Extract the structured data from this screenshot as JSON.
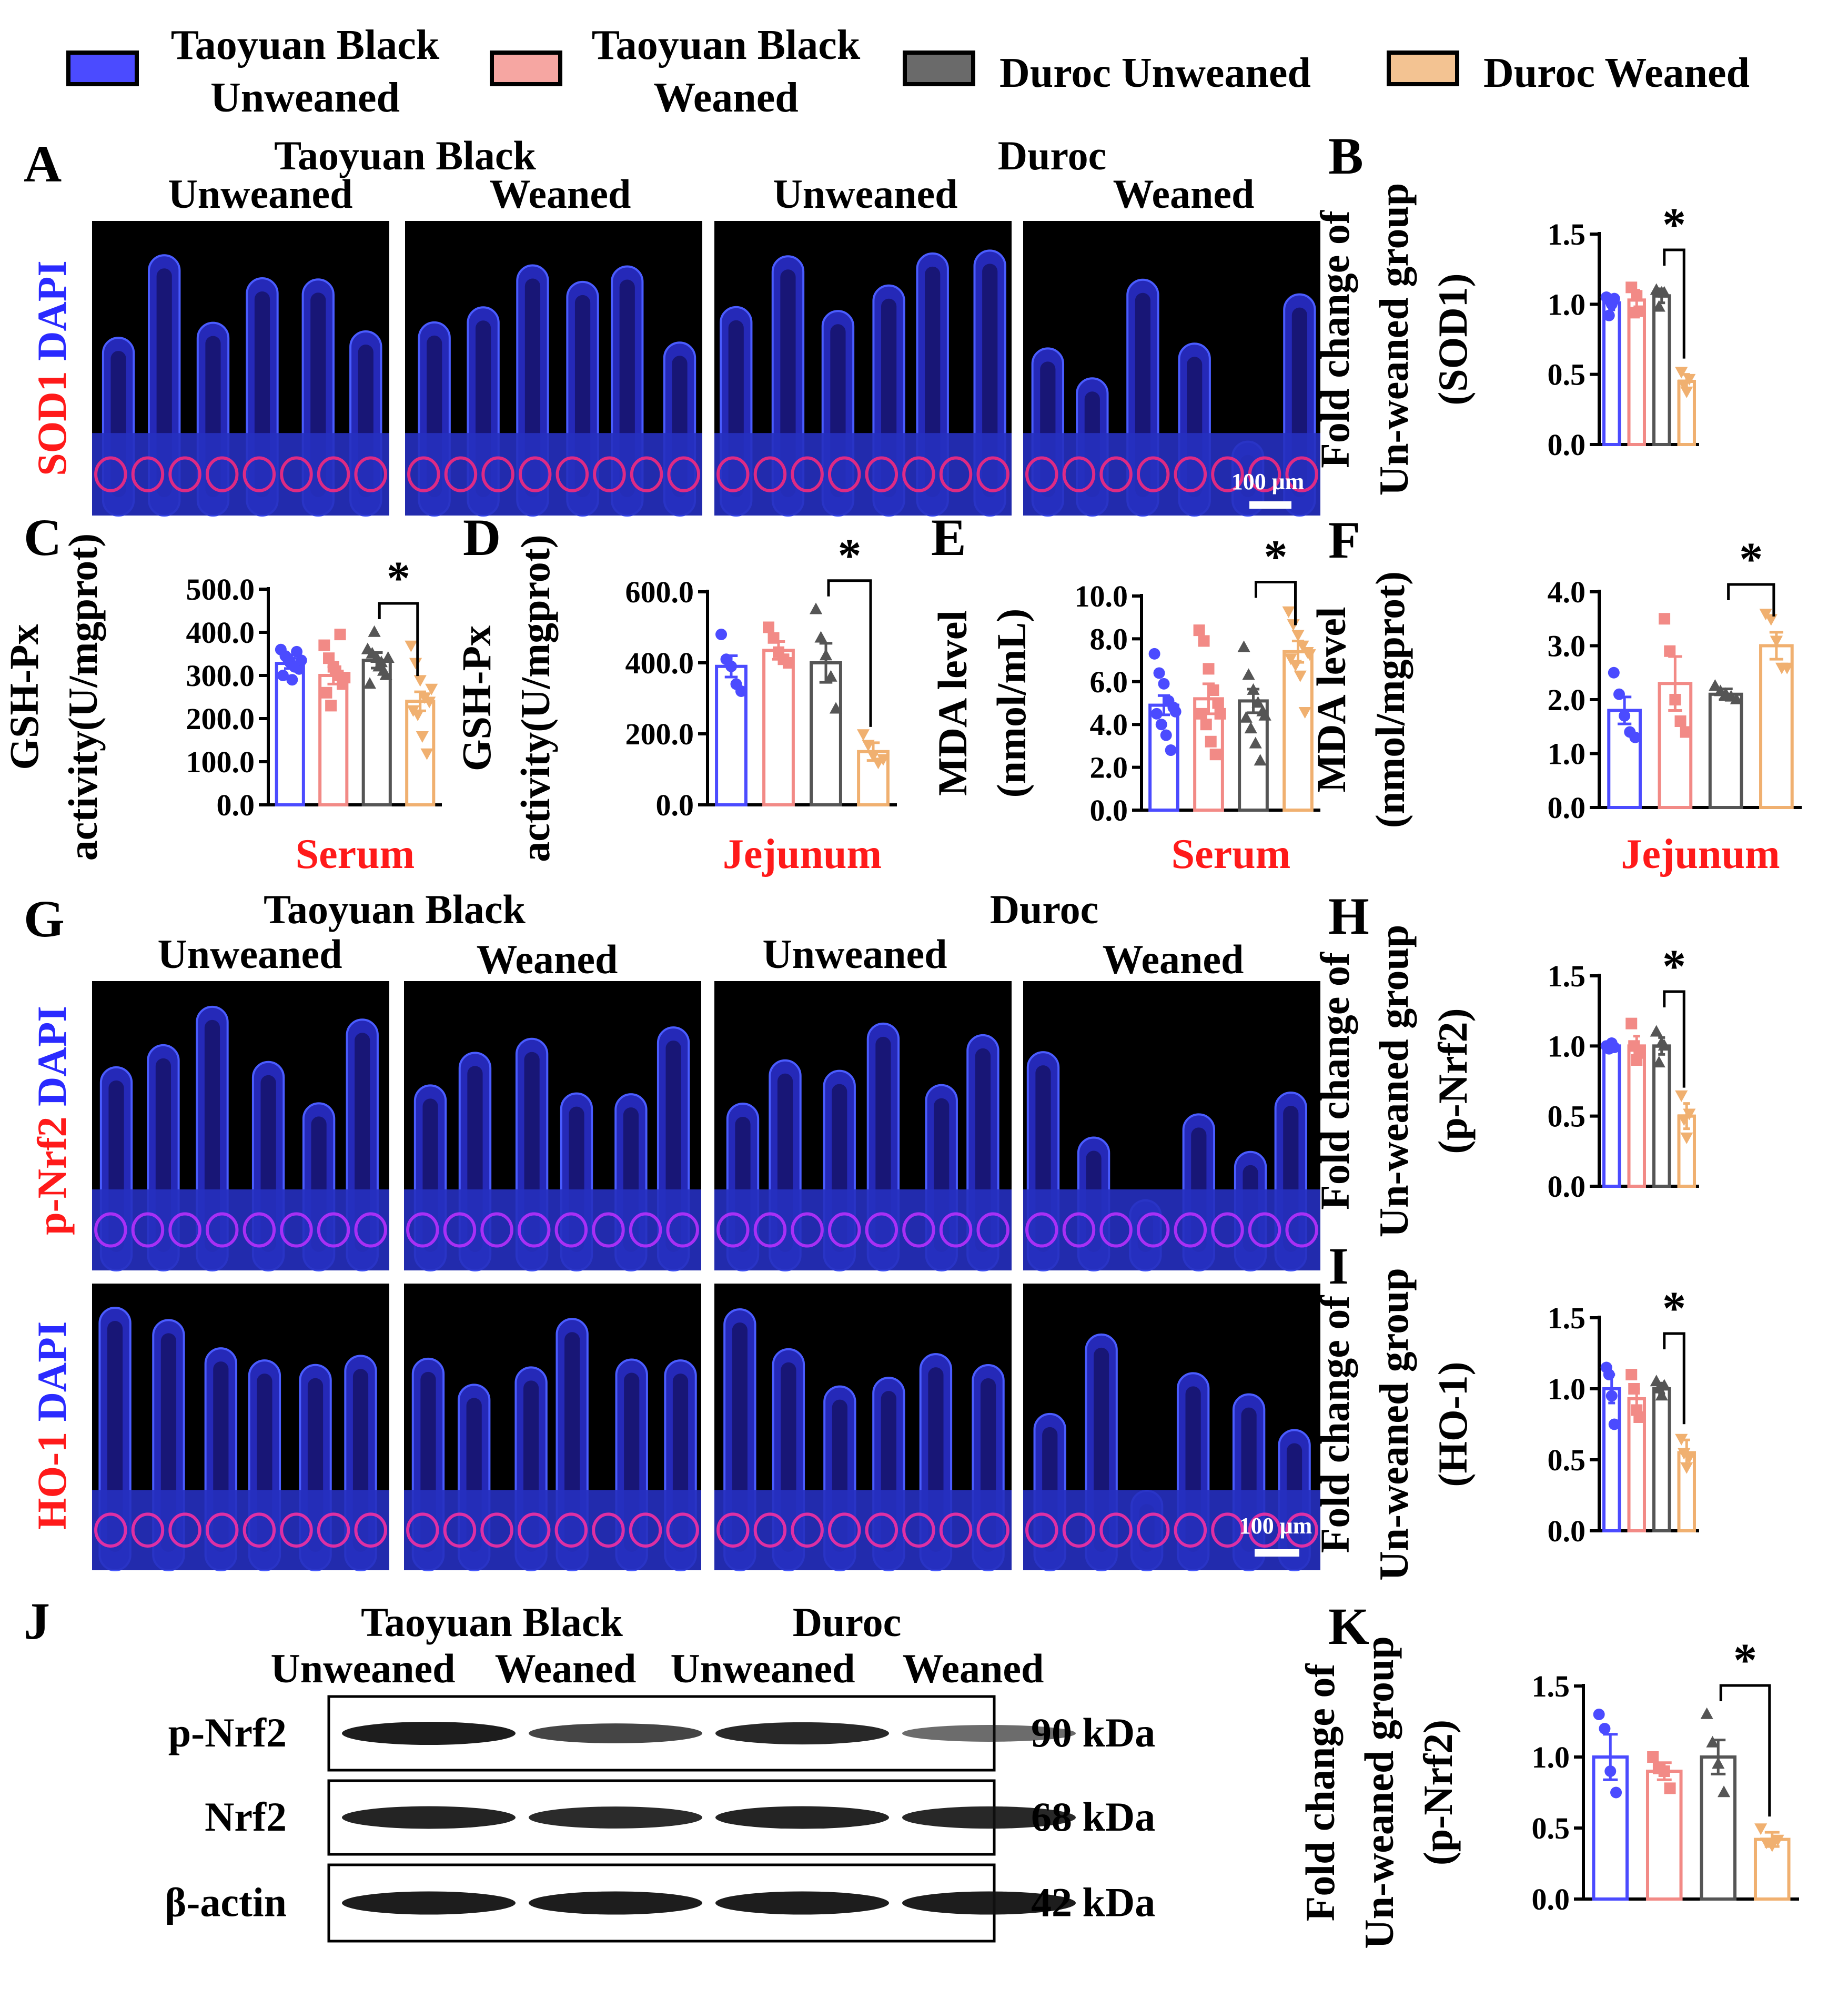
{
  "legend": [
    {
      "line1": "Taoyuan Black",
      "line2": "Unweaned",
      "color": "#4b4bff"
    },
    {
      "line1": "Taoyuan Black",
      "line2": "Weaned",
      "color": "#f6a6a2"
    },
    {
      "line1": "Duroc Unweaned",
      "line2": "",
      "color": "#6a6a6a"
    },
    {
      "line1": "Duroc Weaned",
      "line2": "",
      "color": "#f3c392"
    }
  ],
  "colors": {
    "tb_unweaned": "#4b4bff",
    "tb_weaned": "#f28a86",
    "duroc_unweaned": "#555555",
    "duroc_weaned": "#f0b070",
    "red_label": "#ff1a1a",
    "blue_label": "#2a2aff"
  },
  "panel_letters": {
    "A": "A",
    "B": "B",
    "C": "C",
    "D": "D",
    "E": "E",
    "F": "F",
    "G": "G",
    "H": "H",
    "I": "I",
    "J": "J",
    "K": "K"
  },
  "panel_A": {
    "breed1": "Taoyuan Black",
    "breed2": "Duroc",
    "col1": "Unweaned",
    "col2": "Weaned",
    "col3": "Unweaned",
    "col4": "Weaned",
    "stain_marker": "SOD1",
    "stain_dapi": "DAPI",
    "scale_bar": "100 μm"
  },
  "panel_G": {
    "breed1": "Taoyuan Black",
    "breed2": "Duroc",
    "col1": "Unweaned",
    "col2": "Weaned",
    "col3": "Unweaned",
    "col4": "Weaned",
    "row1_marker": "p-Nrf2",
    "row2_marker": "HO-1",
    "stain_dapi": "DAPI",
    "scale_bar": "100 μm"
  },
  "panel_J": {
    "breed1": "Taoyuan Black",
    "breed2": "Duroc",
    "col1": "Unweaned",
    "col2": "Weaned",
    "col3": "Unweaned",
    "col4": "Weaned",
    "bands": [
      {
        "label": "p-Nrf2",
        "size": "90 kDa",
        "intensity": [
          1.0,
          0.72,
          0.92,
          0.45
        ]
      },
      {
        "label": "Nrf2",
        "size": "68 kDa",
        "intensity": [
          0.95,
          0.9,
          0.95,
          0.92
        ]
      },
      {
        "label": "β-actin",
        "size": "42 kDa",
        "intensity": [
          1.0,
          1.0,
          1.0,
          1.0
        ]
      }
    ]
  },
  "significance": "*",
  "chart_data": [
    {
      "panel": "B",
      "type": "bar",
      "ylabel": [
        "Fold change of",
        "Un-weaned group",
        "(SOD1)"
      ],
      "xlabel": "",
      "ylim": [
        0,
        1.5
      ],
      "yticks": [
        "0.0",
        "0.5",
        "1.0",
        "1.5"
      ],
      "values": [
        1.01,
        1.03,
        1.06,
        0.45
      ],
      "errors": [
        0.05,
        0.07,
        0.05,
        0.05
      ],
      "points": [
        [
          1.05,
          0.92,
          1.0,
          1.04
        ],
        [
          1.12,
          0.94,
          1.06,
          0.95
        ],
        [
          1.1,
          0.98,
          1.08,
          1.08
        ],
        [
          0.52,
          0.43,
          0.38,
          0.47
        ]
      ],
      "sig_pair": [
        2,
        3
      ]
    },
    {
      "panel": "C",
      "type": "bar",
      "ylabel": [
        "GSH-Px",
        "activity(U/mgprot)"
      ],
      "xlabel": "Serum",
      "ylim": [
        0,
        500
      ],
      "yticks": [
        "0.0",
        "100.0",
        "200.0",
        "300.0",
        "400.0",
        "500.0"
      ],
      "values": [
        328,
        300,
        335,
        240
      ],
      "errors": [
        12,
        20,
        18,
        22
      ],
      "points": [
        [
          360,
          345,
          330,
          320,
          315,
          300,
          340,
          290,
          355,
          335
        ],
        [
          370,
          340,
          320,
          300,
          280,
          260,
          230,
          310,
          395,
          295
        ],
        [
          360,
          350,
          340,
          330,
          300,
          280,
          400,
          320,
          310,
          340
        ],
        [
          370,
          330,
          290,
          250,
          240,
          220,
          210,
          160,
          120,
          270
        ]
      ],
      "sig_pair": [
        2,
        3
      ]
    },
    {
      "panel": "D",
      "type": "bar",
      "ylabel": [
        "GSH-Px",
        "activity(U/mgprot)"
      ],
      "xlabel": "Jejunum",
      "ylim": [
        0,
        600
      ],
      "yticks": [
        "0.0",
        "200.0",
        "400.0",
        "600.0"
      ],
      "values": [
        390,
        435,
        400,
        150
      ],
      "errors": [
        30,
        25,
        55,
        25
      ],
      "points": [
        [
          480,
          410,
          390,
          340,
          320
        ],
        [
          500,
          470,
          430,
          410,
          400
        ],
        [
          550,
          470,
          420,
          360,
          270
        ],
        [
          200,
          170,
          140,
          120,
          130
        ]
      ],
      "sig_pair": [
        2,
        3
      ]
    },
    {
      "panel": "E",
      "type": "bar",
      "ylabel": [
        "MDA level",
        "(nmol/mL)"
      ],
      "xlabel": "Serum",
      "ylim": [
        0,
        10
      ],
      "yticks": [
        "0.0",
        "2.0",
        "4.0",
        "6.0",
        "8.0",
        "10.0"
      ],
      "values": [
        4.9,
        5.2,
        5.1,
        7.4
      ],
      "errors": [
        0.45,
        0.7,
        0.55,
        0.5
      ],
      "points": [
        [
          7.3,
          6.4,
          5.9,
          5.1,
          4.8,
          4.5,
          4.0,
          3.5,
          2.8,
          4.6
        ],
        [
          8.4,
          7.9,
          6.6,
          5.6,
          5.0,
          4.5,
          4.0,
          3.2,
          2.6,
          4.5
        ],
        [
          7.6,
          6.3,
          5.6,
          5.0,
          4.6,
          4.3,
          3.8,
          3.1,
          2.3,
          4.4
        ],
        [
          9.3,
          8.7,
          8.2,
          7.7,
          7.4,
          7.1,
          6.8,
          6.3,
          4.6,
          7.3
        ]
      ],
      "sig_pair": [
        2,
        3
      ]
    },
    {
      "panel": "F",
      "type": "bar",
      "ylabel": [
        "MDA level",
        "(nmol/mgprot)"
      ],
      "xlabel": "Jejunum",
      "ylim": [
        0,
        4
      ],
      "yticks": [
        "0.0",
        "1.0",
        "2.0",
        "3.0",
        "4.0"
      ],
      "values": [
        1.8,
        2.3,
        2.1,
        3.0
      ],
      "errors": [
        0.25,
        0.5,
        0.1,
        0.25
      ],
      "points": [
        [
          2.5,
          2.1,
          1.7,
          1.4,
          1.3
        ],
        [
          3.5,
          2.9,
          2.0,
          1.6,
          1.4
        ],
        [
          2.25,
          2.15,
          2.1,
          2.05,
          2.0
        ],
        [
          3.6,
          3.5,
          3.1,
          2.6,
          2.6
        ]
      ],
      "sig_pair": [
        2,
        3
      ]
    },
    {
      "panel": "H",
      "type": "bar",
      "ylabel": [
        "Fold change of",
        "Un-weaned group",
        "(p-Nrf2)"
      ],
      "xlabel": "",
      "ylim": [
        0,
        1.5
      ],
      "yticks": [
        "0.0",
        "0.5",
        "1.0",
        "1.5"
      ],
      "values": [
        1.0,
        1.0,
        1.0,
        0.5
      ],
      "errors": [
        0.02,
        0.07,
        0.06,
        0.09
      ],
      "points": [
        [
          1.0,
          0.98,
          1.02,
          0.99
        ],
        [
          1.16,
          1.0,
          0.9,
          0.95
        ],
        [
          1.1,
          0.88,
          1.02,
          1.0
        ],
        [
          0.65,
          0.48,
          0.35,
          0.52
        ]
      ],
      "sig_pair": [
        2,
        3
      ]
    },
    {
      "panel": "I",
      "type": "bar",
      "ylabel": [
        "Fold change of",
        "Un-weaned group",
        "(HO-1)"
      ],
      "xlabel": "",
      "ylim": [
        0,
        1.5
      ],
      "yticks": [
        "0.0",
        "0.5",
        "1.0",
        "1.5"
      ],
      "values": [
        1.0,
        0.93,
        1.0,
        0.55
      ],
      "errors": [
        0.1,
        0.07,
        0.04,
        0.09
      ],
      "points": [
        [
          1.15,
          1.1,
          0.95,
          0.75
        ],
        [
          1.1,
          1.0,
          0.85,
          0.8
        ],
        [
          1.05,
          1.0,
          0.95,
          1.02
        ],
        [
          0.65,
          0.55,
          0.45,
          0.52
        ]
      ],
      "sig_pair": [
        2,
        3
      ]
    },
    {
      "panel": "K",
      "type": "bar",
      "ylabel": [
        "Fold change of",
        "Un-weaned group",
        "(p-Nrf2)"
      ],
      "xlabel": "",
      "ylim": [
        0,
        1.5
      ],
      "yticks": [
        "0.0",
        "0.5",
        "1.0",
        "1.5"
      ],
      "values": [
        1.0,
        0.9,
        1.0,
        0.42
      ],
      "errors": [
        0.16,
        0.06,
        0.12,
        0.05
      ],
      "points": [
        [
          1.3,
          1.2,
          0.9,
          0.75
        ],
        [
          1.0,
          0.92,
          0.9,
          0.78
        ],
        [
          1.3,
          1.1,
          0.95,
          0.75
        ],
        [
          0.5,
          0.4,
          0.38,
          0.42
        ]
      ],
      "sig_pair": [
        2,
        3
      ]
    }
  ]
}
